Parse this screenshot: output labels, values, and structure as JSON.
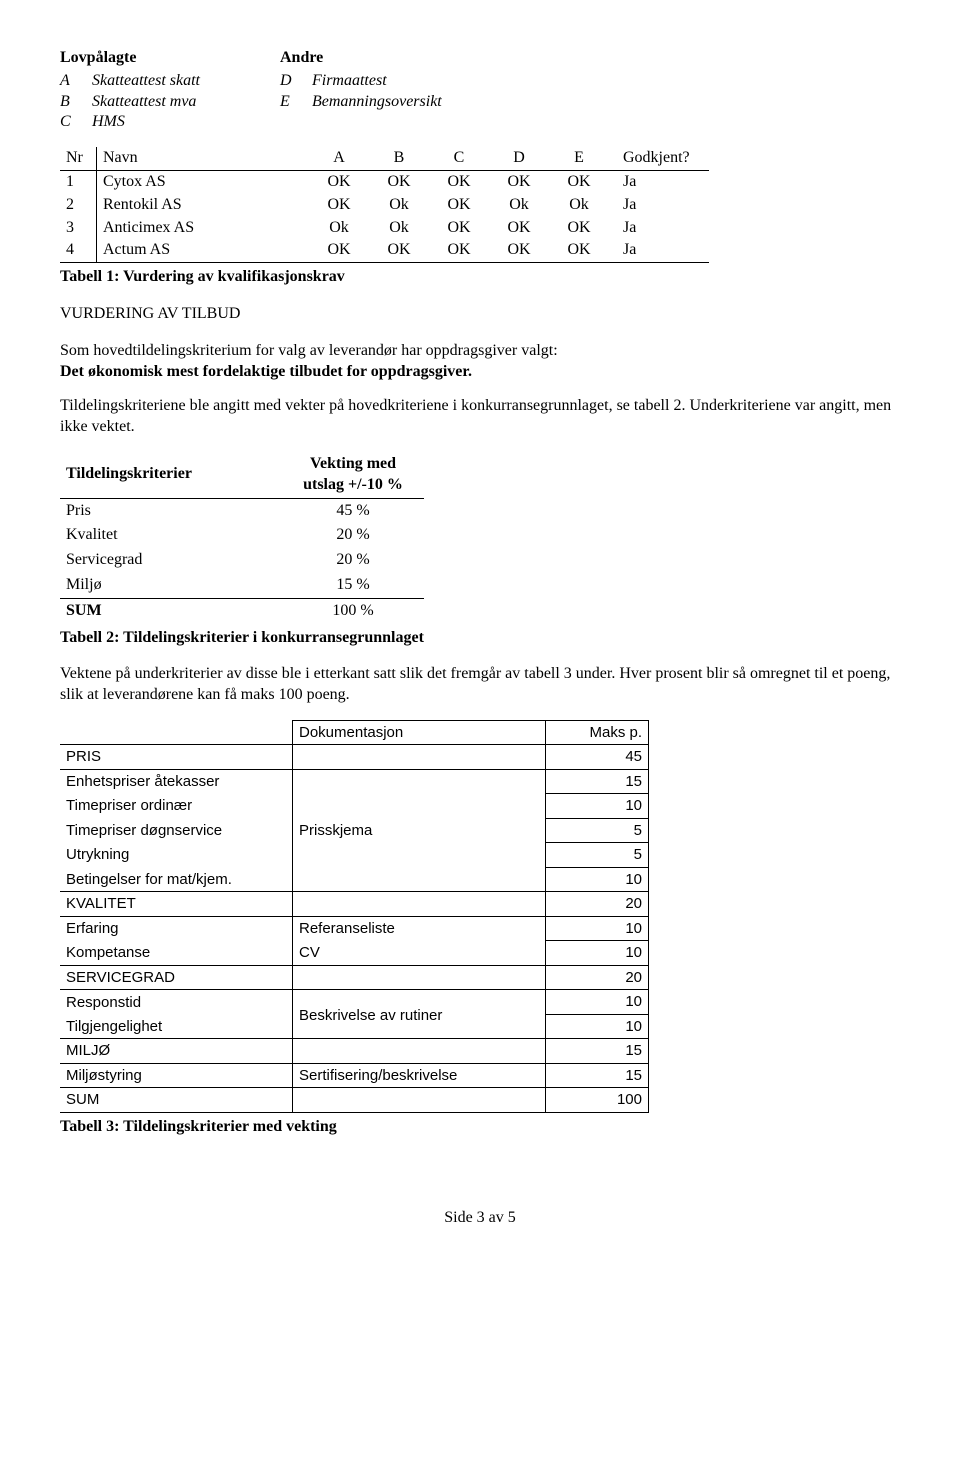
{
  "defs": {
    "left": {
      "header": "Lovpålagte",
      "rows": [
        {
          "k": "A",
          "v": "Skatteattest skatt"
        },
        {
          "k": "B",
          "v": "Skatteattest mva"
        },
        {
          "k": "C",
          "v": "HMS"
        }
      ]
    },
    "right": {
      "header": "Andre",
      "rows": [
        {
          "k": "D",
          "v": "Firmaattest"
        },
        {
          "k": "E",
          "v": "Bemanningsoversikt"
        }
      ]
    }
  },
  "table1": {
    "head": {
      "nr": "Nr",
      "navn": "Navn",
      "cols": [
        "A",
        "B",
        "C",
        "D",
        "E"
      ],
      "g": "Godkjent?"
    },
    "rows": [
      {
        "nr": "1",
        "navn": "Cytox AS",
        "cells": [
          "OK",
          "OK",
          "OK",
          "OK",
          "OK"
        ],
        "g": "Ja"
      },
      {
        "nr": "2",
        "navn": "Rentokil AS",
        "cells": [
          "OK",
          "Ok",
          "OK",
          "Ok",
          "Ok"
        ],
        "g": "Ja"
      },
      {
        "nr": "3",
        "navn": "Anticimex AS",
        "cells": [
          "Ok",
          "Ok",
          "OK",
          "OK",
          "OK"
        ],
        "g": "Ja"
      },
      {
        "nr": "4",
        "navn": "Actum AS",
        "cells": [
          "OK",
          "OK",
          "OK",
          "OK",
          "OK"
        ],
        "g": "Ja"
      }
    ],
    "caption": "Tabell 1: Vurdering av kvalifikasjonskrav"
  },
  "section": {
    "h": "VURDERING AV TILBUD",
    "p1a": "Som hovedtildelingskriterium for valg av leverandør har oppdragsgiver valgt:",
    "p1b": "Det økonomisk mest fordelaktige tilbudet for oppdragsgiver.",
    "p2": "Tildelingskriteriene ble angitt med vekter på hovedkriteriene i konkurransegrunnlaget, se tabell 2. Underkriteriene var angitt, men ikke vektet."
  },
  "table2": {
    "head": {
      "l": "Tildelingskriterier",
      "r1": "Vekting med",
      "r2": "utslag +/-10 %"
    },
    "rows": [
      {
        "l": "Pris",
        "v": "45 %"
      },
      {
        "l": "Kvalitet",
        "v": "20 %"
      },
      {
        "l": "Servicegrad",
        "v": "20 %"
      },
      {
        "l": "Miljø",
        "v": "15 %"
      }
    ],
    "sum": {
      "l": "SUM",
      "v": "100 %"
    },
    "caption": "Tabell 2: Tildelingskriterier i konkurransegrunnlaget"
  },
  "para3": "Vektene på underkriterier av disse ble i etterkant satt slik det fremgår av tabell 3 under. Hver prosent blir så omregnet til et poeng, slik at leverandørene kan få maks 100 poeng.",
  "table3": {
    "head": {
      "doc": "Dokumentasjon",
      "pts": "Maks p."
    },
    "rows": [
      {
        "type": "section",
        "name": "PRIS",
        "doc": "",
        "pts": "45"
      },
      {
        "type": "plain",
        "name": "Enhetspriser åtekasser",
        "doc": "",
        "pts": "15"
      },
      {
        "type": "plain",
        "name": "Timepriser ordinær",
        "doc": "",
        "pts": "10"
      },
      {
        "type": "plain",
        "name": "Timepriser døgnservice",
        "doc": "Prisskjema",
        "pts": "5"
      },
      {
        "type": "plain",
        "name": "Utrykning",
        "doc": "",
        "pts": "5"
      },
      {
        "type": "plain",
        "name": "Betingelser for mat/kjem.",
        "doc": "",
        "pts": "10"
      },
      {
        "type": "section",
        "name": "KVALITET",
        "doc": "",
        "pts": "20"
      },
      {
        "type": "plain",
        "name": "Erfaring",
        "doc": "Referanseliste",
        "pts": "10"
      },
      {
        "type": "plain",
        "name": "Kompetanse",
        "doc": "CV",
        "pts": "10"
      },
      {
        "type": "section",
        "name": "SERVICEGRAD",
        "doc": "",
        "pts": "20"
      },
      {
        "type": "plain",
        "name": "Responstid",
        "doc": "",
        "pts": "10"
      },
      {
        "type": "plain",
        "name": "Tilgjengelighet",
        "doc": "Beskrivelse av rutiner",
        "pts": "10",
        "doc_shift": true
      },
      {
        "type": "section",
        "name": "MILJØ",
        "doc": "",
        "pts": "15"
      },
      {
        "type": "plain",
        "name": "Miljøstyring",
        "doc": "Sertifisering/beskrivelse",
        "pts": "15"
      },
      {
        "type": "section",
        "name": "SUM",
        "doc": "",
        "pts": "100"
      }
    ],
    "caption": "Tabell 3: Tildelingskriterier med vekting"
  },
  "footer": "Side 3 av 5"
}
